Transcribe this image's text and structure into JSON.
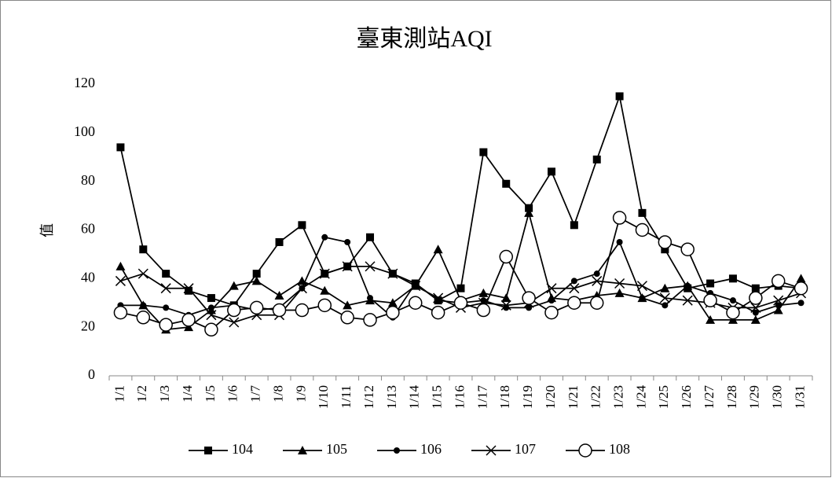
{
  "chart_data": {
    "type": "line",
    "title": "臺東測站AQI",
    "y_label": "值",
    "categories": [
      "1/1",
      "1/2",
      "1/3",
      "1/4",
      "1/5",
      "1/6",
      "1/7",
      "1/8",
      "1/9",
      "1/10",
      "1/11",
      "1/12",
      "1/13",
      "1/14",
      "1/15",
      "1/16",
      "1/17",
      "1/18",
      "1/19",
      "1/20",
      "1/21",
      "1/22",
      "1/23",
      "1/24",
      "1/25",
      "1/26",
      "1/27",
      "1/28",
      "1/29",
      "1/30",
      "1/31"
    ],
    "series": [
      {
        "name": "104",
        "color": "#000000",
        "marker": "square",
        "values": [
          94,
          52,
          42,
          35,
          32,
          29,
          42,
          55,
          62,
          42,
          45,
          57,
          42,
          38,
          31,
          36,
          92,
          79,
          69,
          84,
          62,
          89,
          115,
          67,
          52,
          36,
          38,
          40,
          36,
          37,
          36
        ]
      },
      {
        "name": "105",
        "color": "#000000",
        "marker": "triangle",
        "values": [
          45,
          29,
          19,
          20,
          27,
          37,
          39,
          33,
          39,
          35,
          29,
          31,
          30,
          37,
          52,
          31,
          34,
          32,
          67,
          32,
          31,
          33,
          34,
          32,
          36,
          37,
          23,
          23,
          23,
          27,
          40
        ]
      },
      {
        "name": "106",
        "color": "#000000",
        "marker": "dot",
        "values": [
          29,
          29,
          28,
          25,
          28,
          29,
          27,
          28,
          36,
          57,
          55,
          32,
          24,
          38,
          31,
          30,
          31,
          28,
          28,
          31,
          39,
          42,
          55,
          32,
          29,
          37,
          34,
          31,
          26,
          29,
          30
        ]
      },
      {
        "name": "107",
        "color": "#000000",
        "marker": "cross",
        "values": [
          39,
          42,
          36,
          36,
          25,
          22,
          25,
          25,
          36,
          42,
          45,
          45,
          42,
          37,
          32,
          28,
          30,
          29,
          30,
          36,
          36,
          39,
          38,
          37,
          32,
          31,
          30,
          28,
          28,
          31,
          34
        ]
      },
      {
        "name": "108",
        "color": "#000000",
        "marker": "circle",
        "values": [
          26,
          24,
          21,
          23,
          19,
          27,
          28,
          27,
          27,
          29,
          24,
          23,
          26,
          30,
          26,
          30,
          27,
          49,
          32,
          26,
          30,
          30,
          65,
          60,
          55,
          52,
          31,
          26,
          32,
          39,
          36
        ]
      }
    ],
    "ylim": [
      0,
      120
    ],
    "yticks": [
      0,
      20,
      40,
      60,
      80,
      100,
      120
    ],
    "grid": false,
    "legend": "bottom"
  }
}
